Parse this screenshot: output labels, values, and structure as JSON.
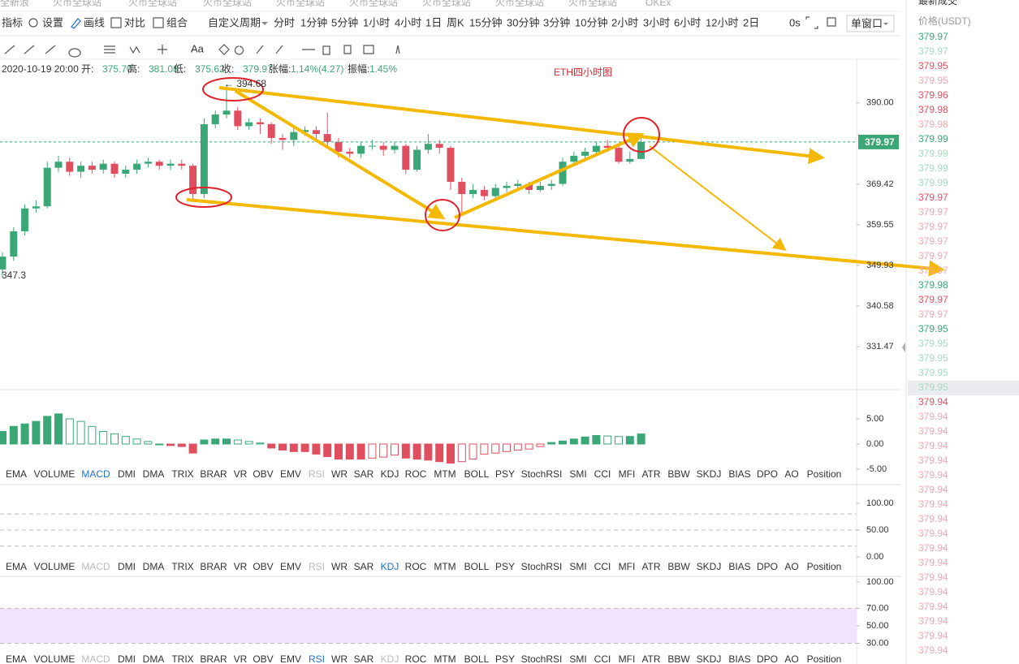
{
  "browser_tabs": [
    "全新浪",
    "火币全球站",
    "火币全球站",
    "火币全球站",
    "火币全球站",
    "火币全球站",
    "火币全球站",
    "火币全球站",
    "火币全球站",
    "OKEx"
  ],
  "toolbar": {
    "indicators": "指标",
    "settings": "设置",
    "draw": "画线",
    "compare": "对比",
    "combine": "组合",
    "custom_period": "自定义周期",
    "periods": [
      "分时",
      "1分钟",
      "5分钟",
      "1小时",
      "4小时",
      "1日",
      "周K",
      "15分钟",
      "30分钟",
      "3分钟",
      "10分钟",
      "2小时",
      "3小时",
      "6小时",
      "12小时",
      "2日"
    ],
    "active_period": 4,
    "countdown": "0s",
    "window_mode": "单窗口",
    "text_tool": "Aa"
  },
  "info": {
    "time": "2020-10-19 20:00",
    "fields": [
      {
        "label": "开:",
        "value": "375.70"
      },
      {
        "label": "高:",
        "value": "381.08"
      },
      {
        "label": "低:",
        "value": "375.62"
      },
      {
        "label": "收:",
        "value": "379.97"
      },
      {
        "label": "张幅:",
        "value": "1.14%(4.27)"
      },
      {
        "label": "振幅:",
        "value": "1.45%"
      }
    ]
  },
  "chart_data": [
    {
      "type": "candlestick",
      "title": "ETH四小时图",
      "up_color": "#3ba776",
      "down_color": "#e04f5f",
      "log_scale": true,
      "ylim": [
        322.1,
        401.1
      ],
      "yticks": [
        {
          "value": 390,
          "label": "390.00"
        },
        369.42,
        359.55,
        349.93,
        340.58,
        331.47
      ],
      "last_price": 379.97,
      "annotations": [
        "← 394.68",
        "347.3"
      ],
      "open": [
        349,
        352,
        358,
        363.5,
        364,
        373.5,
        375,
        372.5,
        374,
        373,
        374.5,
        372,
        373,
        374.5,
        375,
        374,
        374.5,
        374,
        367,
        384.5,
        387,
        388,
        384,
        385,
        384.5,
        381,
        380.5,
        382.5,
        383,
        382,
        380,
        377.5,
        377,
        379,
        379,
        378,
        379,
        373,
        378,
        379.5,
        378.5,
        370,
        367,
        368,
        366.5,
        368.5,
        369,
        369.5,
        368,
        369,
        369.5,
        375,
        376.5,
        377.5,
        379,
        378.5,
        375,
        375.7
      ],
      "high": [
        353,
        359,
        364.5,
        365.5,
        375,
        376.5,
        376,
        375,
        375,
        375.5,
        375,
        374,
        375.5,
        376,
        375.5,
        375.5,
        375.5,
        374.5,
        386,
        388,
        394.68,
        389,
        386,
        386,
        385,
        382,
        383.5,
        384,
        384,
        387.5,
        381,
        378.5,
        380,
        380.5,
        380,
        380,
        379.5,
        379,
        382,
        380.5,
        379,
        371,
        369.5,
        369,
        369.5,
        370,
        370.5,
        370,
        370,
        370.5,
        376,
        377.5,
        378.5,
        380,
        380.5,
        379,
        377.5,
        381.08
      ],
      "low": [
        347.3,
        351,
        357,
        362.5,
        363.5,
        372.5,
        371.5,
        371,
        372,
        372,
        371,
        371,
        372,
        373.5,
        373,
        373,
        373,
        365.5,
        366,
        383.5,
        386,
        383,
        383,
        382,
        379.5,
        378,
        379,
        381.5,
        380.5,
        379,
        376,
        376,
        376,
        378,
        376.5,
        377,
        372,
        372.5,
        377,
        377,
        368,
        362.5,
        366,
        365.5,
        365.5,
        367.5,
        368,
        367,
        367.5,
        368,
        369,
        374.5,
        375.5,
        376.5,
        377.5,
        374.5,
        374.5,
        375.62
      ],
      "close": [
        352,
        358,
        363.5,
        364,
        373.5,
        375,
        372.5,
        374,
        373,
        374.5,
        372,
        373,
        374.5,
        375,
        374,
        374.5,
        374,
        367,
        384.5,
        387,
        388,
        384,
        385,
        384.5,
        381,
        380.5,
        382.5,
        383,
        382,
        380,
        377.5,
        377,
        379,
        379,
        378,
        379,
        373,
        378,
        379.5,
        378.5,
        370,
        367,
        368,
        366.5,
        368.5,
        369,
        369.5,
        368,
        369,
        369.5,
        375,
        376.5,
        377.5,
        379,
        378.5,
        375,
        375.7,
        379.97
      ]
    },
    {
      "type": "bar",
      "name": "MACD",
      "up_color": "#3ba776",
      "down_color": "#e04f5f",
      "ylim": [
        -7.26,
        8.39
      ],
      "yticks": [
        {
          "value": 5,
          "label": "5.00"
        },
        {
          "value": 0,
          "label": "0.00"
        },
        {
          "value": -5,
          "label": "-5.00"
        }
      ],
      "values": [
        2.5,
        3.5,
        4.0,
        4.5,
        5.5,
        6.0,
        5.0,
        4.5,
        3.5,
        2.5,
        2.0,
        1.5,
        1.0,
        0.5,
        0.0,
        -0.3,
        -0.5,
        -1.8,
        0.8,
        1.0,
        1.0,
        0.8,
        0.5,
        0.2,
        -0.8,
        -1.2,
        -1.5,
        -1.5,
        -2.0,
        -2.5,
        -3.0,
        -3.0,
        -3.0,
        -2.8,
        -2.6,
        -2.2,
        -2.8,
        -3.0,
        -3.2,
        -3.5,
        -3.8,
        -3.5,
        -3.0,
        -2.0,
        -1.8,
        -1.5,
        -1.2,
        -1.0,
        -0.5,
        0.3,
        0.6,
        1.0,
        1.4,
        1.7,
        1.6,
        1.5,
        1.5,
        2.0
      ]
    },
    {
      "type": "oscillator",
      "name": "KDJ",
      "ylim": [
        -6.1,
        122.7
      ],
      "yticks": [
        {
          "value": 100,
          "label": "100.00"
        },
        {
          "value": 50,
          "label": "50.00"
        },
        {
          "value": 0,
          "label": "0.00"
        }
      ],
      "guides": [
        80,
        50,
        20
      ]
    },
    {
      "type": "oscillator",
      "name": "RSI",
      "ylim": [
        23.1,
        104.6
      ],
      "yticks": [
        {
          "value": 100,
          "label": "100.00"
        },
        {
          "value": 70,
          "label": "70.00"
        },
        {
          "value": 50,
          "label": "50.00"
        },
        {
          "value": 30,
          "label": "30.00"
        }
      ],
      "guides": [
        70,
        30
      ],
      "band": [
        30,
        70
      ],
      "band_color": "#f1e3fb"
    }
  ],
  "indicator_tabs": [
    "EMA",
    "VOLUME",
    "MACD",
    "DMI",
    "DMA",
    "TRIX",
    "BRAR",
    "VR",
    "OBV",
    "EMV",
    "RSI",
    "WR",
    "SAR",
    "KDJ",
    "ROC",
    "MTM",
    "BOLL",
    "PSY",
    "StochRSI",
    "SMI",
    "CCI",
    "MFI",
    "ATR",
    "BBW",
    "SKDJ",
    "BIAS",
    "DPO",
    "AO",
    "Position"
  ],
  "indicator_rows": [
    {
      "active": 2,
      "disabled": [
        10
      ]
    },
    {
      "active": 13,
      "disabled": [
        2,
        10
      ]
    },
    {
      "active": 10,
      "disabled": [
        2,
        13
      ]
    }
  ],
  "trade_panel": {
    "title": "最新成交",
    "column": "价格(USDT)",
    "highlighted_row": 24,
    "rows": [
      {
        "price": 379.97,
        "color": "#3ba776"
      },
      {
        "price": 379.97,
        "color": "#a6d9bf"
      },
      {
        "price": 379.95,
        "color": "#e04f5f"
      },
      {
        "price": 379.95,
        "color": "#f0a7af"
      },
      {
        "price": 379.96,
        "color": "#e04f5f"
      },
      {
        "price": 379.98,
        "color": "#e04f5f"
      },
      {
        "price": 379.98,
        "color": "#f0a7af"
      },
      {
        "price": 379.99,
        "color": "#3ba776"
      },
      {
        "price": 379.99,
        "color": "#a6d9bf"
      },
      {
        "price": 379.99,
        "color": "#a6d9bf"
      },
      {
        "price": 379.99,
        "color": "#a6d9bf"
      },
      {
        "price": 379.97,
        "color": "#e04f5f"
      },
      {
        "price": 379.97,
        "color": "#f0a7af"
      },
      {
        "price": 379.97,
        "color": "#f0a7af"
      },
      {
        "price": 379.97,
        "color": "#f0a7af"
      },
      {
        "price": 379.97,
        "color": "#f0a7af"
      },
      {
        "price": 379.97,
        "color": "#f0a7af"
      },
      {
        "price": 379.98,
        "color": "#3ba776"
      },
      {
        "price": 379.97,
        "color": "#e04f5f"
      },
      {
        "price": 379.97,
        "color": "#f0a7af"
      },
      {
        "price": 379.95,
        "color": "#3ba776"
      },
      {
        "price": 379.95,
        "color": "#a6d9bf"
      },
      {
        "price": 379.95,
        "color": "#a6d9bf"
      },
      {
        "price": 379.95,
        "color": "#a6d9bf"
      },
      {
        "price": 379.95,
        "color": "#a6d9bf"
      },
      {
        "price": 379.94,
        "color": "#e04f5f"
      },
      {
        "price": 379.94,
        "color": "#f0a7af"
      },
      {
        "price": 379.94,
        "color": "#f0a7af"
      },
      {
        "price": 379.94,
        "color": "#f0a7af"
      },
      {
        "price": 379.94,
        "color": "#f0a7af"
      },
      {
        "price": 379.94,
        "color": "#f0a7af"
      },
      {
        "price": 379.94,
        "color": "#f0a7af"
      },
      {
        "price": 379.94,
        "color": "#f0a7af"
      },
      {
        "price": 379.94,
        "color": "#f0a7af"
      },
      {
        "price": 379.94,
        "color": "#f0a7af"
      },
      {
        "price": 379.94,
        "color": "#f0a7af"
      },
      {
        "price": 379.94,
        "color": "#f0a7af"
      },
      {
        "price": 379.94,
        "color": "#f0a7af"
      },
      {
        "price": 379.94,
        "color": "#f0a7af"
      },
      {
        "price": 379.94,
        "color": "#f0a7af"
      },
      {
        "price": 379.94,
        "color": "#f0a7af"
      },
      {
        "price": 379.94,
        "color": "#f0a7af"
      },
      {
        "price": 379.94,
        "color": "#f0a7af"
      }
    ]
  }
}
